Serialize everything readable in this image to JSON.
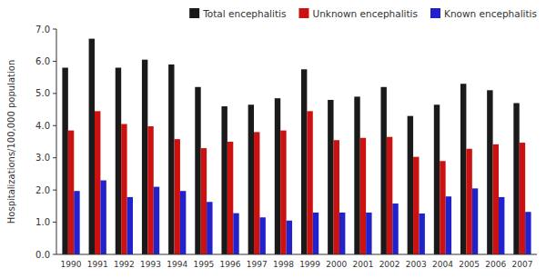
{
  "chart_data": {
    "type": "bar",
    "categories": [
      "1990",
      "1991",
      "1992",
      "1993",
      "1994",
      "1995",
      "1996",
      "1997",
      "1998",
      "1999",
      "2000",
      "2001",
      "2002",
      "2003",
      "2004",
      "2005",
      "2006",
      "2007"
    ],
    "series": [
      {
        "name": "Total encephalitis",
        "color": "#1a1a1a",
        "values": [
          5.8,
          6.7,
          5.8,
          6.05,
          5.9,
          5.2,
          4.6,
          4.65,
          4.85,
          5.75,
          4.8,
          4.9,
          5.2,
          4.3,
          4.65,
          5.3,
          5.1,
          4.7
        ]
      },
      {
        "name": "Unknown encephalitis",
        "color": "#cc1111",
        "values": [
          3.85,
          4.45,
          4.05,
          3.98,
          3.58,
          3.3,
          3.5,
          3.8,
          3.85,
          4.45,
          3.55,
          3.62,
          3.65,
          3.03,
          2.9,
          3.28,
          3.42,
          3.47
        ]
      },
      {
        "name": "Known encephalitis",
        "color": "#2222cc",
        "values": [
          1.97,
          2.3,
          1.78,
          2.1,
          1.97,
          1.63,
          1.28,
          1.15,
          1.05,
          1.3,
          1.3,
          1.3,
          1.58,
          1.27,
          1.8,
          2.05,
          1.78,
          1.32
        ]
      }
    ],
    "y_label": "Hospitalizations/100,000 population",
    "ylim": [
      0.0,
      7.0
    ],
    "yticks": [
      {
        "value": 0.0,
        "label": "0.0"
      },
      {
        "value": 1.0,
        "label": "1.0"
      },
      {
        "value": 2.0,
        "label": "2.0"
      },
      {
        "value": 3.0,
        "label": "3.0"
      },
      {
        "value": 4.0,
        "label": "4.0"
      },
      {
        "value": 5.0,
        "label": "5.0"
      },
      {
        "value": 6.0,
        "label": "6.0"
      },
      {
        "value": 7.0,
        "label": "7.0"
      }
    ],
    "grid": false,
    "legend": "top-right"
  }
}
